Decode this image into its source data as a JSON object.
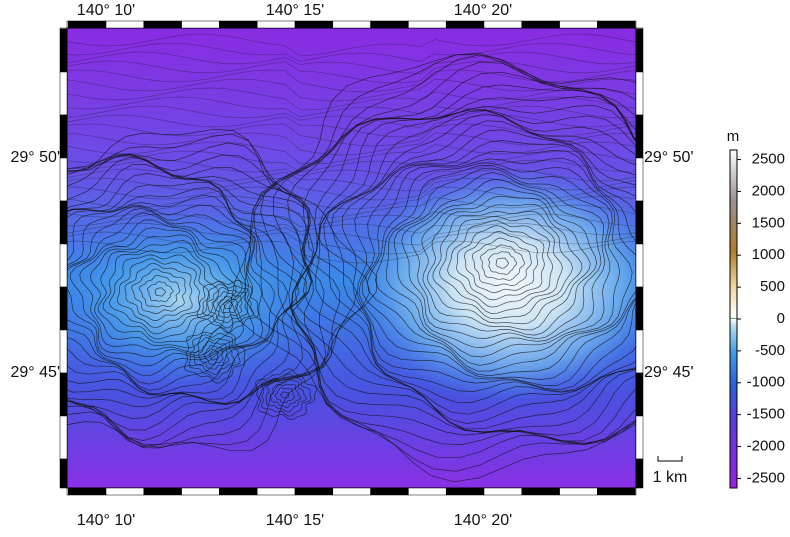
{
  "map": {
    "x_labels": [
      "140° 10'",
      "140° 15'",
      "140° 20'"
    ],
    "y_labels": [
      "29° 50'",
      "29° 45'"
    ],
    "colorbar": {
      "unit": "m",
      "lim": [
        -2650,
        2650
      ],
      "ticks": [
        2500,
        2000,
        1500,
        1000,
        500,
        0,
        -500,
        -1000,
        -1500,
        -2000,
        -2500
      ]
    },
    "scale_bar": "1 km"
  }
}
